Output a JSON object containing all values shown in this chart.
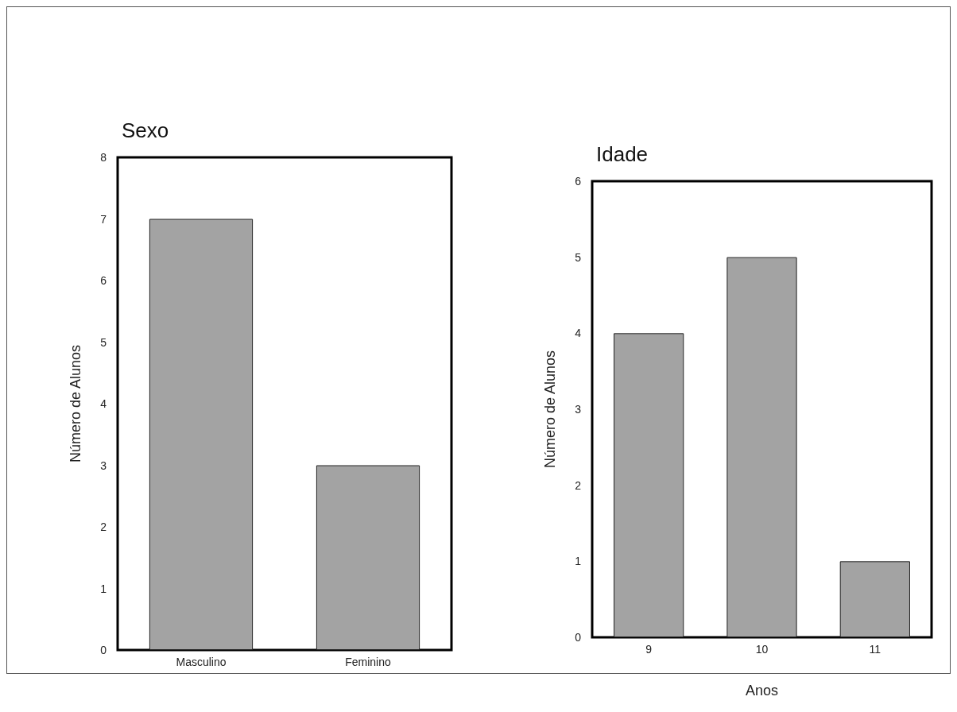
{
  "chart_data": [
    {
      "type": "bar",
      "title": "Sexo",
      "ylabel": "Número de Alunos",
      "categories": [
        "Masculino",
        "Feminino"
      ],
      "values": [
        7,
        3
      ],
      "color": "#a3a3a3",
      "ylim": [
        0,
        8
      ],
      "yticks": [
        0,
        1,
        2,
        3,
        4,
        5,
        6,
        7,
        8
      ],
      "grid": false
    },
    {
      "type": "bar",
      "title": "Idade",
      "ylabel": "Número de Alunos",
      "xlabel": "Anos",
      "categories": [
        "9",
        "10",
        "11"
      ],
      "values": [
        4,
        5,
        1
      ],
      "color": "#a3a3a3",
      "ylim": [
        0,
        6
      ],
      "yticks": [
        0,
        1,
        2,
        3,
        4,
        5,
        6
      ],
      "grid": false
    }
  ]
}
